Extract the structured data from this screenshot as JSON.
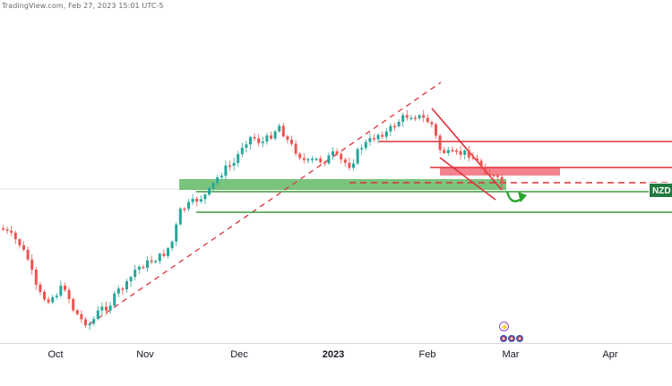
{
  "header": {
    "text": "TradingView.com, Feb 27, 2023 15:01 UTC-5"
  },
  "x_axis": {
    "labels": [
      "Oct",
      "Nov",
      "Dec",
      "2023",
      "Feb",
      "Mar",
      "Apr"
    ]
  },
  "price_badge": {
    "label": "NZD"
  },
  "events": {
    "lightning_symbol": "⚡"
  },
  "colors": {
    "up": "#26a69a",
    "down": "#ef5350",
    "support_zone": "#4caf50",
    "resistance_zone": "#f05a6a",
    "green_line": "#3a9b3a",
    "red_line": "#e0303a",
    "accent_arrow": "#2aa52a"
  },
  "icons": [
    "lightning-icon",
    "flag-icon",
    "curved-arrow-icon"
  ]
}
